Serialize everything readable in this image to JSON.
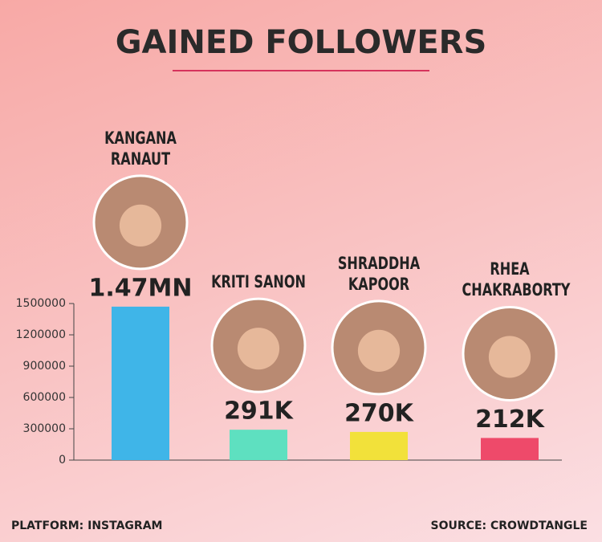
{
  "chart_data": {
    "type": "bar",
    "title": "GAINED FOLLOWERS",
    "categories": [
      "KANGANA RANAUT",
      "KRITI SANON",
      "SHRADDHA KAPOOR",
      "RHEA CHAKRABORTY"
    ],
    "values": [
      1470000,
      291000,
      270000,
      212000
    ],
    "value_labels": [
      "1.47MN",
      "291K",
      "270K",
      "212K"
    ],
    "colors": [
      "#3fb5e8",
      "#5ee0c0",
      "#f2e13a",
      "#ee4a6a"
    ],
    "ylim": [
      0,
      1500000
    ],
    "yticks": [
      0,
      300000,
      600000,
      900000,
      1200000,
      1500000
    ],
    "platform": "PLATFORM: INSTAGRAM",
    "source": "SOURCE: CROWDTANGLE"
  }
}
